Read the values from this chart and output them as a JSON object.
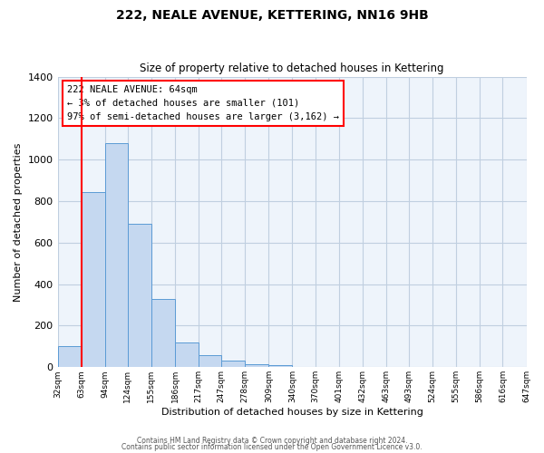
{
  "title": "222, NEALE AVENUE, KETTERING, NN16 9HB",
  "subtitle": "Size of property relative to detached houses in Kettering",
  "xlabel": "Distribution of detached houses by size in Kettering",
  "ylabel": "Number of detached properties",
  "bin_edges": [
    32,
    63,
    94,
    124,
    155,
    186,
    217,
    247,
    278,
    309,
    340,
    370,
    401,
    432,
    463,
    493,
    524,
    555,
    586,
    616,
    647
  ],
  "bar_heights": [
    100,
    845,
    1080,
    690,
    330,
    120,
    60,
    32,
    15,
    10,
    0,
    0,
    0,
    0,
    0,
    0,
    0,
    0,
    0,
    0
  ],
  "bar_color": "#c5d8f0",
  "bar_edge_color": "#5b9bd5",
  "x_tick_labels": [
    "32sqm",
    "63sqm",
    "94sqm",
    "124sqm",
    "155sqm",
    "186sqm",
    "217sqm",
    "247sqm",
    "278sqm",
    "309sqm",
    "340sqm",
    "370sqm",
    "401sqm",
    "432sqm",
    "463sqm",
    "493sqm",
    "524sqm",
    "555sqm",
    "586sqm",
    "616sqm",
    "647sqm"
  ],
  "ylim": [
    0,
    1400
  ],
  "grid_color": "#c0cfe0",
  "bg_color": "#eef4fb",
  "red_line_x": 63,
  "annotation_box_text": "222 NEALE AVENUE: 64sqm\n← 3% of detached houses are smaller (101)\n97% of semi-detached houses are larger (3,162) →",
  "footer_line1": "Contains HM Land Registry data © Crown copyright and database right 2024.",
  "footer_line2": "Contains public sector information licensed under the Open Government Licence v3.0."
}
